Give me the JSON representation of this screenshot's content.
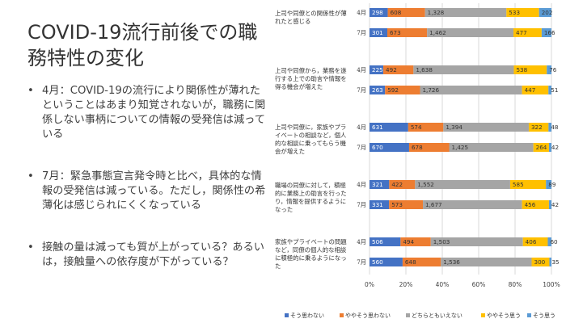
{
  "title": "COVID-19流行前後での職務特性の変化",
  "bullets": [
    "4月：COVID-19の流行により関係性が薄れたということはあまり知覚されないが，職務に関係しない事柄についての情報の受発信は減っている",
    "7月：緊急事態宣言発令時と比べ，具体的な情報の受発信は減っている。ただし，関係性の希薄化は感じられにくくなっている",
    "接触の量は減っても質が上がっている？あるいは，接触量への依存度が下がっている？"
  ],
  "chart_data": {
    "type": "bar",
    "orientation": "horizontal",
    "stacked": "percent",
    "questions": [
      "上司や同僚との関係性が薄れたと感じる",
      "上司や同僚から，業務を遂行する上での助言や情報を得る機会が増えた",
      "上司や同僚に，家族やプライベートの相談など，個人的な相談に乗ってもらう機会が増えた",
      "職場の同僚に対して，積極的に業務上の助言を行ったり，情報を提供するようになった",
      "家族やプライベートの問題など，同僚の個人的な相談に積極的に乗るようになった"
    ],
    "periods": [
      "4月",
      "7月"
    ],
    "legend": [
      "そう思わない",
      "ややそう思わない",
      "どちらともいえない",
      "ややそう思う",
      "そう思う"
    ],
    "colors": [
      "#4472c4",
      "#ed7d31",
      "#a5a5a5",
      "#ffc000",
      "#5b9bd5"
    ],
    "values": [
      [
        [
          298,
          608,
          1328,
          533,
          202
        ],
        [
          301,
          673,
          1462,
          477,
          166
        ]
      ],
      [
        [
          225,
          492,
          1638,
          538,
          76
        ],
        [
          263,
          592,
          1726,
          447,
          51
        ]
      ],
      [
        [
          631,
          574,
          1394,
          322,
          48
        ],
        [
          670,
          678,
          1425,
          264,
          42
        ]
      ],
      [
        [
          321,
          422,
          1552,
          585,
          89
        ],
        [
          331,
          573,
          1677,
          456,
          42
        ]
      ],
      [
        [
          506,
          494,
          1503,
          406,
          60
        ],
        [
          560,
          648,
          1536,
          300,
          35
        ]
      ]
    ],
    "segment_labels": [
      [
        [
          "298",
          "608",
          "1,328",
          "533",
          "202"
        ],
        [
          "301",
          "673",
          "1,462",
          "477",
          "166"
        ]
      ],
      [
        [
          "225",
          "492",
          "1,638",
          "538",
          "76"
        ],
        [
          "263",
          "592",
          "1,726",
          "447",
          "51"
        ]
      ],
      [
        [
          "631",
          "574",
          "1,394",
          "322",
          "48"
        ],
        [
          "670",
          "678",
          "1,425",
          "264",
          "42"
        ]
      ],
      [
        [
          "321",
          "422",
          "1,552",
          "585",
          "89"
        ],
        [
          "331",
          "573",
          "1,677",
          "456",
          "42"
        ]
      ],
      [
        [
          "506",
          "494",
          "1,503",
          "406",
          "60"
        ],
        [
          "560",
          "648",
          "1,536",
          "300",
          "35"
        ]
      ]
    ],
    "x_ticks": [
      "0%",
      "20%",
      "40%",
      "60%",
      "80%",
      "100%"
    ],
    "xlim": [
      0,
      100
    ],
    "grid": true,
    "legend_position": "bottom"
  }
}
